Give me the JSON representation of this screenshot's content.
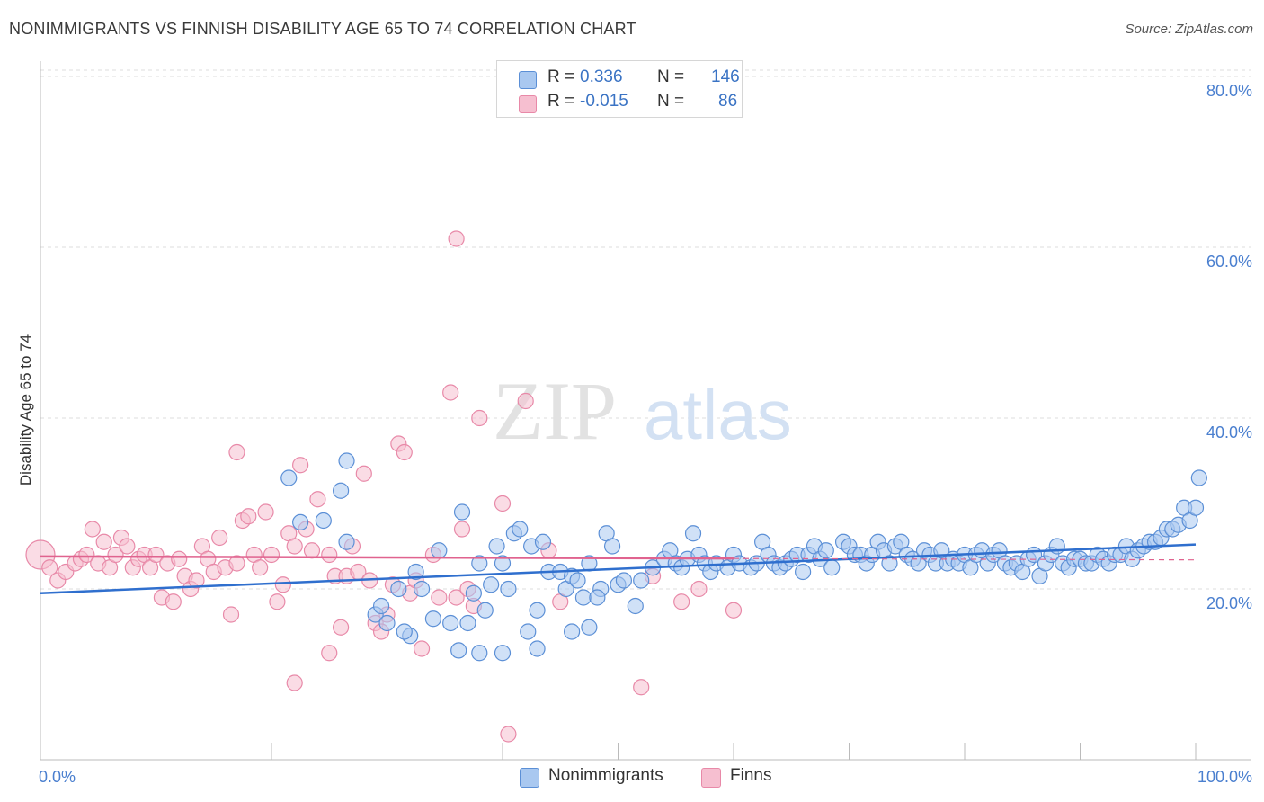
{
  "header": {
    "title": "NONIMMIGRANTS VS FINNISH DISABILITY AGE 65 TO 74 CORRELATION CHART",
    "source": "Source: ZipAtlas.com"
  },
  "watermark": {
    "zip": "ZIP",
    "atlas": "atlas"
  },
  "colors": {
    "nonimmigrants_fill": "#a9c8f0",
    "nonimmigrants_stroke": "#5b8fd6",
    "nonimmigrants_line": "#2f6fce",
    "finns_fill": "#f6bfd0",
    "finns_stroke": "#e889a8",
    "finns_line": "#e0638f",
    "tick_text": "#4a7fcf",
    "grid": "#dddddd"
  },
  "legend_top": {
    "rows": [
      {
        "series": "nonimmigrants",
        "r_label": "R =",
        "r_value": "0.336",
        "n_label": "N =",
        "n_value": "146"
      },
      {
        "series": "finns",
        "r_label": "R =",
        "r_value": "-0.015",
        "n_label": "N =",
        "n_value": "86"
      }
    ]
  },
  "legend_bottom": {
    "items": [
      "Nonimmigrants",
      "Finns"
    ]
  },
  "chart_data": {
    "type": "scatter",
    "title": "NONIMMIGRANTS VS FINNISH DISABILITY AGE 65 TO 74 CORRELATION CHART",
    "xlabel": "",
    "ylabel": "Disability Age 65 to 74",
    "xlim": [
      0,
      100
    ],
    "ylim": [
      0,
      85
    ],
    "x_tick_labels": [
      "0.0%",
      "100.0%"
    ],
    "y_ticks": [
      20,
      40,
      60,
      80
    ],
    "y_tick_labels": [
      "20.0%",
      "40.0%",
      "60.0%",
      "80.0%"
    ],
    "grid": true,
    "legend_position": "top-center",
    "series": [
      {
        "name": "Nonimmigrants",
        "r": 0.336,
        "n": 146,
        "trend": {
          "x": [
            0,
            100
          ],
          "y": [
            19.5,
            25.2
          ]
        },
        "points": [
          [
            21.5,
            33
          ],
          [
            26.5,
            35
          ],
          [
            26,
            31.5
          ],
          [
            24.5,
            28
          ],
          [
            22.5,
            27.8
          ],
          [
            26.5,
            25.5
          ],
          [
            31,
            20
          ],
          [
            29,
            17
          ],
          [
            30,
            16
          ],
          [
            29.5,
            18
          ],
          [
            32.5,
            22
          ],
          [
            33,
            20
          ],
          [
            34.5,
            24.5
          ],
          [
            34,
            16.5
          ],
          [
            36.5,
            29
          ],
          [
            35.5,
            16
          ],
          [
            37.5,
            19.5
          ],
          [
            38,
            23
          ],
          [
            39,
            20.5
          ],
          [
            39.5,
            25
          ],
          [
            38.5,
            17.5
          ],
          [
            40,
            23
          ],
          [
            40.5,
            20
          ],
          [
            41,
            26.5
          ],
          [
            41.5,
            27
          ],
          [
            42.5,
            25
          ],
          [
            43,
            17.5
          ],
          [
            43.5,
            25.5
          ],
          [
            44,
            22
          ],
          [
            45,
            22
          ],
          [
            45.5,
            20
          ],
          [
            46,
            21.5
          ],
          [
            46.5,
            21
          ],
          [
            47,
            19
          ],
          [
            47.5,
            23
          ],
          [
            48.5,
            20
          ],
          [
            49,
            26.5
          ],
          [
            49.5,
            25
          ],
          [
            50,
            20.5
          ],
          [
            50.5,
            21
          ],
          [
            51.5,
            18
          ],
          [
            52,
            21
          ],
          [
            53,
            22.5
          ],
          [
            54,
            23.5
          ],
          [
            54.5,
            24.5
          ],
          [
            55,
            23
          ],
          [
            55.5,
            22.5
          ],
          [
            56,
            23.5
          ],
          [
            56.5,
            26.5
          ],
          [
            57,
            24
          ],
          [
            57.5,
            23
          ],
          [
            58,
            22
          ],
          [
            58.5,
            23
          ],
          [
            59.5,
            22.5
          ],
          [
            60,
            24
          ],
          [
            60.5,
            23
          ],
          [
            61.5,
            22.5
          ],
          [
            62,
            23
          ],
          [
            62.5,
            25.5
          ],
          [
            63,
            24
          ],
          [
            63.5,
            23
          ],
          [
            64,
            22.5
          ],
          [
            64.5,
            23
          ],
          [
            65,
            23.5
          ],
          [
            65.5,
            24
          ],
          [
            66,
            22
          ],
          [
            66.5,
            24
          ],
          [
            67,
            25
          ],
          [
            67.5,
            23.5
          ],
          [
            68,
            24.5
          ],
          [
            68.5,
            22.5
          ],
          [
            69.5,
            25.5
          ],
          [
            70,
            25
          ],
          [
            70.5,
            24
          ],
          [
            71,
            24
          ],
          [
            71.5,
            23
          ],
          [
            72,
            24
          ],
          [
            72.5,
            25.5
          ],
          [
            73,
            24.5
          ],
          [
            73.5,
            23
          ],
          [
            74,
            25
          ],
          [
            74.5,
            25.5
          ],
          [
            75,
            24
          ],
          [
            75.5,
            23.5
          ],
          [
            76,
            23
          ],
          [
            76.5,
            24.5
          ],
          [
            77,
            24
          ],
          [
            77.5,
            23
          ],
          [
            78,
            24.5
          ],
          [
            78.5,
            23
          ],
          [
            79,
            23.5
          ],
          [
            79.5,
            23
          ],
          [
            80,
            24
          ],
          [
            80.5,
            22.5
          ],
          [
            81,
            24
          ],
          [
            81.5,
            24.5
          ],
          [
            82,
            23
          ],
          [
            82.5,
            24
          ],
          [
            83,
            24.5
          ],
          [
            83.5,
            23
          ],
          [
            84,
            22.5
          ],
          [
            84.5,
            23
          ],
          [
            85,
            22
          ],
          [
            85.5,
            23.5
          ],
          [
            86,
            24
          ],
          [
            86.5,
            21.5
          ],
          [
            87,
            23
          ],
          [
            87.5,
            24
          ],
          [
            88,
            25
          ],
          [
            88.5,
            23
          ],
          [
            89,
            22.5
          ],
          [
            89.5,
            23.5
          ],
          [
            90,
            23.5
          ],
          [
            90.5,
            23
          ],
          [
            91,
            23
          ],
          [
            91.5,
            24
          ],
          [
            92,
            23.5
          ],
          [
            92.5,
            23
          ],
          [
            93,
            24
          ],
          [
            93.5,
            24
          ],
          [
            94,
            25
          ],
          [
            94.5,
            23.5
          ],
          [
            95,
            24.5
          ],
          [
            95.5,
            25
          ],
          [
            96,
            25.5
          ],
          [
            96.5,
            25.5
          ],
          [
            97,
            26
          ],
          [
            97.5,
            27
          ],
          [
            98,
            27
          ],
          [
            98.5,
            27.5
          ],
          [
            99,
            29.5
          ],
          [
            99.5,
            28
          ],
          [
            100,
            29.5
          ],
          [
            100.5,
            33
          ],
          [
            32,
            14.5
          ],
          [
            37,
            16
          ],
          [
            38,
            12.5
          ],
          [
            40,
            12.5
          ],
          [
            43,
            13
          ],
          [
            46,
            15
          ],
          [
            47.5,
            15.5
          ],
          [
            31.5,
            15
          ],
          [
            36.2,
            12.8
          ],
          [
            42.2,
            15
          ],
          [
            48.2,
            19
          ]
        ]
      },
      {
        "name": "Finns",
        "r": -0.015,
        "n": 86,
        "trend": {
          "x": [
            0,
            100
          ],
          "y": [
            23.8,
            23.4
          ]
        },
        "points": [
          [
            0,
            24
          ],
          [
            0.8,
            22.5
          ],
          [
            1.5,
            21
          ],
          [
            2.2,
            22
          ],
          [
            3,
            23
          ],
          [
            3.5,
            23.5
          ],
          [
            4,
            24
          ],
          [
            4.5,
            27
          ],
          [
            5,
            23
          ],
          [
            5.5,
            25.5
          ],
          [
            6,
            22.5
          ],
          [
            6.5,
            24
          ],
          [
            7,
            26
          ],
          [
            7.5,
            25
          ],
          [
            8,
            22.5
          ],
          [
            8.5,
            23.5
          ],
          [
            9,
            24
          ],
          [
            9.5,
            22.5
          ],
          [
            10,
            24
          ],
          [
            10.5,
            19
          ],
          [
            11,
            23
          ],
          [
            11.5,
            18.5
          ],
          [
            12,
            23.5
          ],
          [
            12.5,
            21.5
          ],
          [
            13,
            20
          ],
          [
            13.5,
            21
          ],
          [
            14,
            25
          ],
          [
            14.5,
            23.5
          ],
          [
            15,
            22
          ],
          [
            15.5,
            26
          ],
          [
            16,
            22.5
          ],
          [
            16.5,
            17
          ],
          [
            17,
            23
          ],
          [
            17.5,
            28
          ],
          [
            18,
            28.5
          ],
          [
            18.5,
            24
          ],
          [
            19,
            22.5
          ],
          [
            19.5,
            29
          ],
          [
            20,
            24
          ],
          [
            20.5,
            18.5
          ],
          [
            21,
            20.5
          ],
          [
            21.5,
            26.5
          ],
          [
            22,
            25
          ],
          [
            22.5,
            34.5
          ],
          [
            23,
            27
          ],
          [
            23.5,
            24.5
          ],
          [
            24,
            30.5
          ],
          [
            25,
            24
          ],
          [
            25.5,
            21.5
          ],
          [
            26,
            15.5
          ],
          [
            26.5,
            21.5
          ],
          [
            27,
            25
          ],
          [
            27.5,
            22
          ],
          [
            28,
            33.5
          ],
          [
            28.5,
            21
          ],
          [
            29,
            16
          ],
          [
            29.5,
            15
          ],
          [
            30,
            17
          ],
          [
            30.5,
            20.5
          ],
          [
            31,
            37
          ],
          [
            31.5,
            36
          ],
          [
            32,
            19.5
          ],
          [
            32.5,
            21
          ],
          [
            33,
            13
          ],
          [
            34,
            24
          ],
          [
            34.5,
            19
          ],
          [
            35.5,
            43
          ],
          [
            36,
            19
          ],
          [
            36.5,
            27
          ],
          [
            37,
            20
          ],
          [
            37.5,
            18
          ],
          [
            38,
            40
          ],
          [
            40,
            30
          ],
          [
            42,
            42
          ],
          [
            44,
            24.5
          ],
          [
            45,
            18.5
          ],
          [
            52,
            8.5
          ],
          [
            53,
            21.5
          ],
          [
            55.5,
            18.5
          ],
          [
            57,
            20
          ],
          [
            60,
            17.5
          ],
          [
            36,
            61
          ],
          [
            40.5,
            3
          ],
          [
            22,
            9
          ],
          [
            25,
            12.5
          ],
          [
            17,
            36
          ]
        ]
      }
    ]
  }
}
